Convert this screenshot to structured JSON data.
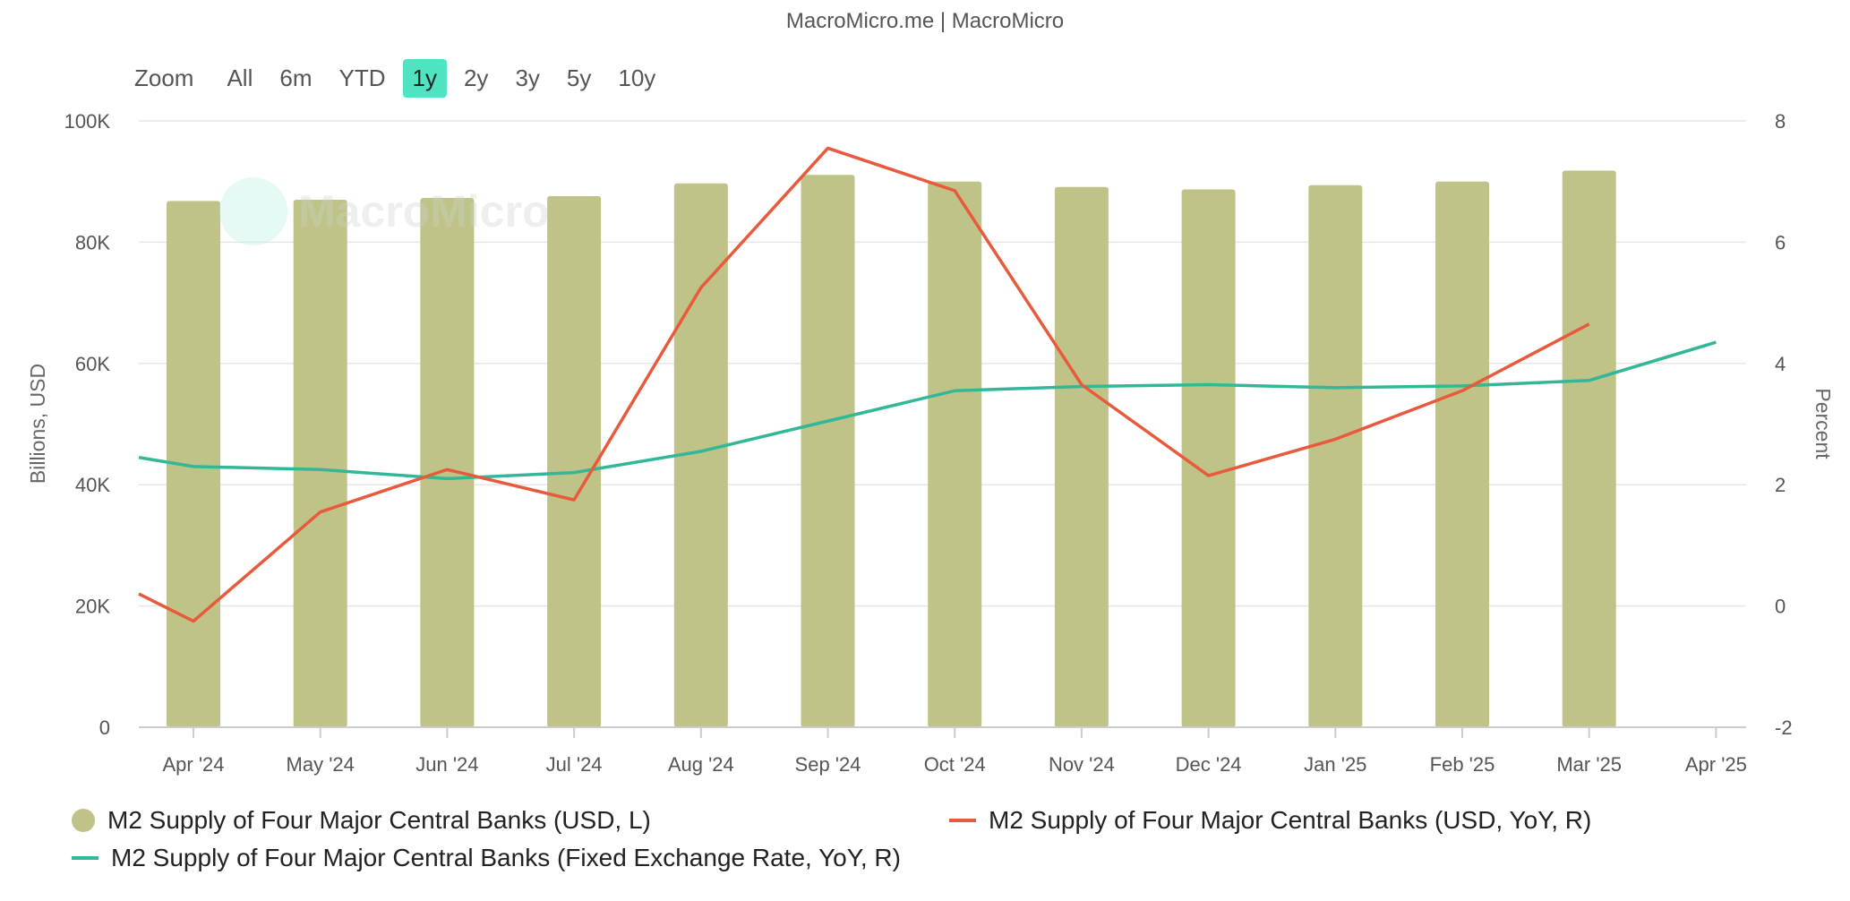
{
  "source": "MacroMicro.me | MacroMicro",
  "zoom": {
    "label": "Zoom",
    "options": [
      "All",
      "6m",
      "YTD",
      "1y",
      "2y",
      "3y",
      "5y",
      "10y"
    ],
    "active": "1y"
  },
  "watermark": {
    "text": "MacroMicro",
    "icon": "macromicro-logo-icon"
  },
  "colors": {
    "bar": "#c0c388",
    "usd_yoy": "#e85a3c",
    "fixed_yoy": "#32b897",
    "grid": "#e6e6e6"
  },
  "chart_data": {
    "type": "bar+line",
    "categories": [
      "Apr '24",
      "May '24",
      "Jun '24",
      "Jul '24",
      "Aug '24",
      "Sep '24",
      "Oct '24",
      "Nov '24",
      "Dec '24",
      "Jan '25",
      "Feb '25",
      "Mar '25",
      "Apr '25"
    ],
    "left_axis": {
      "title": "Billions, USD",
      "min": 0,
      "max": 100000,
      "ticks": [
        0,
        20000,
        40000,
        60000,
        80000,
        100000
      ],
      "tick_labels": [
        "0",
        "20K",
        "40K",
        "60K",
        "80K",
        "100K"
      ]
    },
    "right_axis": {
      "title": "Percent",
      "min": -2,
      "max": 8,
      "ticks": [
        -2,
        0,
        2,
        4,
        6,
        8
      ],
      "tick_labels": [
        "-2",
        "0",
        "2",
        "4",
        "6",
        "8"
      ]
    },
    "grid": true,
    "legend_position": "bottom",
    "series": [
      {
        "name": "M2 Supply of Four Major Central Banks (USD, L)",
        "type": "bar",
        "axis": "left",
        "values": [
          86800,
          87000,
          87300,
          87600,
          89700,
          91100,
          90000,
          89100,
          88700,
          89400,
          90000,
          91800,
          null
        ]
      },
      {
        "name": "M2 Supply of Four Major Central Banks (USD, YoY, R)",
        "type": "line",
        "axis": "right",
        "start": -0.48,
        "start_value": 0.2,
        "values": [
          -0.25,
          1.55,
          2.25,
          1.75,
          5.25,
          7.55,
          6.85,
          3.65,
          2.15,
          2.75,
          3.55,
          4.65,
          null
        ]
      },
      {
        "name": "M2 Supply of Four Major Central Banks (Fixed Exchange Rate, YoY, R)",
        "type": "line",
        "axis": "right",
        "start_value": 2.45,
        "values": [
          2.3,
          2.25,
          2.1,
          2.2,
          2.55,
          3.05,
          3.55,
          3.62,
          3.65,
          3.6,
          3.63,
          3.72,
          4.35
        ]
      }
    ]
  }
}
